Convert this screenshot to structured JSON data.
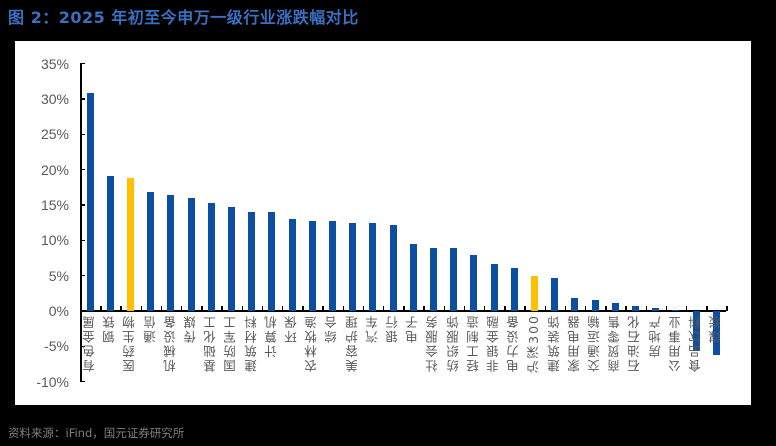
{
  "figure": {
    "title": "图 2：2025 年初至今申万一级行业涨跌幅对比",
    "source": "资料来源：iFind，国元证券研究所"
  },
  "colors": {
    "bar_default": "#0b4ea2",
    "bar_highlight": "#ffc000",
    "title": "#3a6fc2",
    "axis": "#000000",
    "tick_label": "#595959"
  },
  "chart_data": {
    "type": "bar",
    "title": "2025 年初至今申万一级行业涨跌幅对比",
    "xlabel": "",
    "ylabel": "",
    "ylim": [
      -10,
      35
    ],
    "yticks": [
      35,
      30,
      25,
      20,
      15,
      10,
      5,
      0,
      -5,
      -10
    ],
    "ytick_labels": [
      "35%",
      "30%",
      "25%",
      "20%",
      "15%",
      "10%",
      "5%",
      "0%",
      "-5%",
      "-10%"
    ],
    "grid": false,
    "legend": null,
    "unit": "%",
    "categories": [
      "有色金属",
      "钢铁",
      "医药生物",
      "通信",
      "机械设备",
      "传媒",
      "基础化工",
      "国防军工",
      "建筑材料",
      "计算机",
      "环保",
      "农林牧渔",
      "综合",
      "美容护理",
      "汽车",
      "银行",
      "电子",
      "社会服务",
      "纺织服饰",
      "轻工制造",
      "非银金融",
      "电力设备",
      "沪深300",
      "建筑装饰",
      "家用电器",
      "交通运输",
      "商贸零售",
      "石油石化",
      "房地产",
      "公用事业",
      "食品饮料",
      "煤炭"
    ],
    "values": [
      30.8,
      19.1,
      18.8,
      16.9,
      16.4,
      16.0,
      15.3,
      14.7,
      14.0,
      14.0,
      13.0,
      12.8,
      12.8,
      12.4,
      12.4,
      12.1,
      9.5,
      8.9,
      8.9,
      7.9,
      6.6,
      6.1,
      4.9,
      4.6,
      1.9,
      1.6,
      1.1,
      0.7,
      0.4,
      0.2,
      -5.7,
      -6.2
    ],
    "highlighted": [
      "医药生物",
      "沪深300"
    ]
  }
}
